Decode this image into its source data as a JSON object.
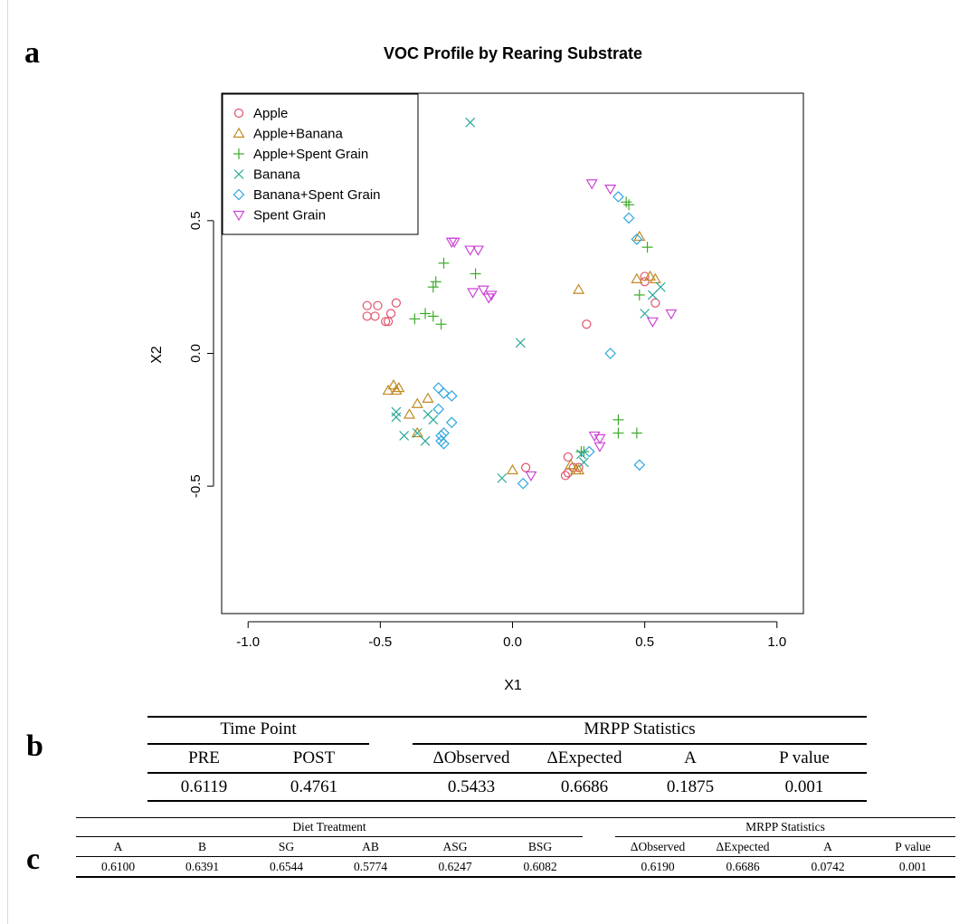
{
  "panels": {
    "a": "a",
    "b": "b",
    "c": "c"
  },
  "chart_data": {
    "type": "scatter",
    "title": "VOC Profile by Rearing Substrate",
    "xlabel": "X1",
    "ylabel": "X2",
    "xlim": [
      -1.1,
      1.1
    ],
    "ylim": [
      -0.98,
      0.98
    ],
    "xticks": [
      -1.0,
      -0.5,
      0.0,
      0.5,
      1.0
    ],
    "yticks": [
      -0.5,
      0.0,
      0.5
    ],
    "tick_labels_x": [
      "-1.0",
      "-0.5",
      "0.0",
      "0.5",
      "1.0"
    ],
    "tick_labels_y": [
      "-0.5",
      "0.0",
      "0.5"
    ],
    "grid": false,
    "legend_position": "top-left",
    "series": [
      {
        "name": "Apple",
        "marker": "circle",
        "color": "#DF536B",
        "points": [
          [
            -0.55,
            0.18
          ],
          [
            -0.52,
            0.14
          ],
          [
            -0.51,
            0.18
          ],
          [
            -0.48,
            0.12
          ],
          [
            -0.47,
            0.12
          ],
          [
            -0.46,
            0.15
          ],
          [
            -0.44,
            0.19
          ],
          [
            -0.55,
            0.14
          ],
          [
            0.28,
            0.11
          ],
          [
            0.5,
            0.29
          ],
          [
            0.5,
            0.27
          ],
          [
            0.54,
            0.19
          ],
          [
            0.05,
            -0.43
          ],
          [
            0.2,
            -0.46
          ],
          [
            0.21,
            -0.39
          ],
          [
            0.21,
            -0.45
          ],
          [
            0.23,
            -0.43
          ],
          [
            0.25,
            -0.43
          ]
        ]
      },
      {
        "name": "Apple+Banana",
        "marker": "triangle-up",
        "color": "#C08A20",
        "points": [
          [
            -0.47,
            -0.14
          ],
          [
            -0.45,
            -0.12
          ],
          [
            -0.44,
            -0.14
          ],
          [
            -0.43,
            -0.13
          ],
          [
            -0.39,
            -0.23
          ],
          [
            -0.36,
            -0.19
          ],
          [
            -0.32,
            -0.17
          ],
          [
            -0.36,
            -0.3
          ],
          [
            0.25,
            0.24
          ],
          [
            0.47,
            0.28
          ],
          [
            0.48,
            0.44
          ],
          [
            0.52,
            0.29
          ],
          [
            0.54,
            0.28
          ],
          [
            0.0,
            -0.44
          ],
          [
            0.22,
            -0.42
          ],
          [
            0.24,
            -0.44
          ],
          [
            0.25,
            -0.44
          ]
        ]
      },
      {
        "name": "Apple+Spent Grain",
        "marker": "plus",
        "color": "#3DAA2A",
        "points": [
          [
            -0.37,
            0.13
          ],
          [
            -0.33,
            0.15
          ],
          [
            -0.3,
            0.14
          ],
          [
            -0.27,
            0.11
          ],
          [
            -0.3,
            0.25
          ],
          [
            -0.29,
            0.27
          ],
          [
            -0.26,
            0.34
          ],
          [
            -0.14,
            0.3
          ],
          [
            0.43,
            0.57
          ],
          [
            0.44,
            0.56
          ],
          [
            0.48,
            0.22
          ],
          [
            0.51,
            0.4
          ],
          [
            0.4,
            -0.25
          ],
          [
            0.4,
            -0.3
          ],
          [
            0.47,
            -0.3
          ],
          [
            0.26,
            -0.37
          ],
          [
            0.27,
            -0.37
          ]
        ]
      },
      {
        "name": "Banana",
        "marker": "cross",
        "color": "#2AA898",
        "points": [
          [
            -0.16,
            0.87
          ],
          [
            0.03,
            0.04
          ],
          [
            0.5,
            0.15
          ],
          [
            0.53,
            0.22
          ],
          [
            0.56,
            0.25
          ],
          [
            -0.44,
            -0.22
          ],
          [
            -0.44,
            -0.24
          ],
          [
            -0.41,
            -0.31
          ],
          [
            -0.36,
            -0.3
          ],
          [
            -0.33,
            -0.33
          ],
          [
            -0.32,
            -0.23
          ],
          [
            -0.3,
            -0.25
          ],
          [
            -0.04,
            -0.47
          ],
          [
            0.26,
            -0.38
          ],
          [
            0.27,
            -0.41
          ]
        ]
      },
      {
        "name": "Banana+Spent Grain",
        "marker": "diamond",
        "color": "#2DA6DF",
        "points": [
          [
            0.37,
            0.0
          ],
          [
            0.4,
            0.59
          ],
          [
            0.44,
            0.51
          ],
          [
            0.47,
            0.43
          ],
          [
            -0.28,
            -0.13
          ],
          [
            -0.26,
            -0.15
          ],
          [
            -0.23,
            -0.16
          ],
          [
            -0.28,
            -0.21
          ],
          [
            -0.23,
            -0.26
          ],
          [
            -0.26,
            -0.3
          ],
          [
            -0.27,
            -0.31
          ],
          [
            -0.27,
            -0.33
          ],
          [
            -0.26,
            -0.34
          ],
          [
            0.04,
            -0.49
          ],
          [
            0.29,
            -0.37
          ],
          [
            0.48,
            -0.42
          ]
        ]
      },
      {
        "name": "Spent Grain",
        "marker": "triangle-down",
        "color": "#CC44D6",
        "points": [
          [
            -0.23,
            0.42
          ],
          [
            -0.22,
            0.42
          ],
          [
            -0.16,
            0.39
          ],
          [
            -0.13,
            0.39
          ],
          [
            -0.15,
            0.23
          ],
          [
            -0.11,
            0.24
          ],
          [
            -0.09,
            0.21
          ],
          [
            -0.08,
            0.22
          ],
          [
            0.3,
            0.64
          ],
          [
            0.37,
            0.62
          ],
          [
            0.53,
            0.12
          ],
          [
            0.6,
            0.15
          ],
          [
            0.07,
            -0.46
          ],
          [
            0.31,
            -0.31
          ],
          [
            0.33,
            -0.32
          ],
          [
            0.33,
            -0.35
          ]
        ]
      }
    ]
  },
  "table_b": {
    "group1": "Time Point",
    "group2": "MRPP Statistics",
    "headers": [
      "PRE",
      "POST",
      "ΔObserved",
      "ΔExpected",
      "A",
      "P value"
    ],
    "values": [
      "0.6119",
      "0.4761",
      "0.5433",
      "0.6686",
      "0.1875",
      "0.001"
    ]
  },
  "table_c": {
    "group1": "Diet Treatment",
    "group2": "MRPP Statistics",
    "headers": [
      "A",
      "B",
      "SG",
      "AB",
      "ASG",
      "BSG",
      "ΔObserved",
      "ΔExpected",
      "A",
      "P value"
    ],
    "values": [
      "0.6100",
      "0.6391",
      "0.6544",
      "0.5774",
      "0.6247",
      "0.6082",
      "0.6190",
      "0.6686",
      "0.0742",
      "0.001"
    ]
  }
}
